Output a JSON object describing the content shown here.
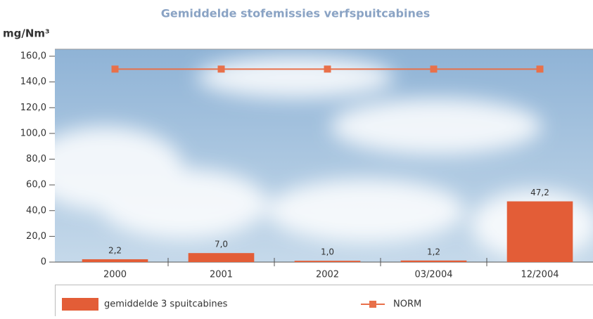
{
  "chart_data": {
    "type": "bar",
    "title": "Gemiddelde stofemissies verfspuitcabines",
    "y_label": "mg/Nm³",
    "categories": [
      "2000",
      "2001",
      "2002",
      "03/2004",
      "12/2004"
    ],
    "series": [
      {
        "name": "gemiddelde 3 spuitcabines",
        "type": "bar",
        "color": "#e35d37",
        "values": [
          2.2,
          7.0,
          1.0,
          1.2,
          47.2
        ],
        "value_labels": [
          "2,2",
          "7,0",
          "1,0",
          "1,2",
          "47,2"
        ]
      },
      {
        "name": "NORM",
        "type": "line",
        "color": "#e8704a",
        "values": [
          150,
          150,
          150,
          150,
          150
        ]
      }
    ],
    "ylim": [
      0,
      160
    ],
    "yticks": [
      0,
      {
        "value": 20,
        "label": "20,0"
      },
      {
        "value": 40,
        "label": "40,0"
      },
      {
        "value": 60,
        "label": "60,0"
      },
      {
        "value": 80,
        "label": "80,0"
      },
      {
        "value": 100,
        "label": "100,0"
      },
      {
        "value": 120,
        "label": "120,0"
      },
      {
        "value": 140,
        "label": "140,0"
      },
      {
        "value": 160,
        "label": "160,0"
      }
    ]
  }
}
